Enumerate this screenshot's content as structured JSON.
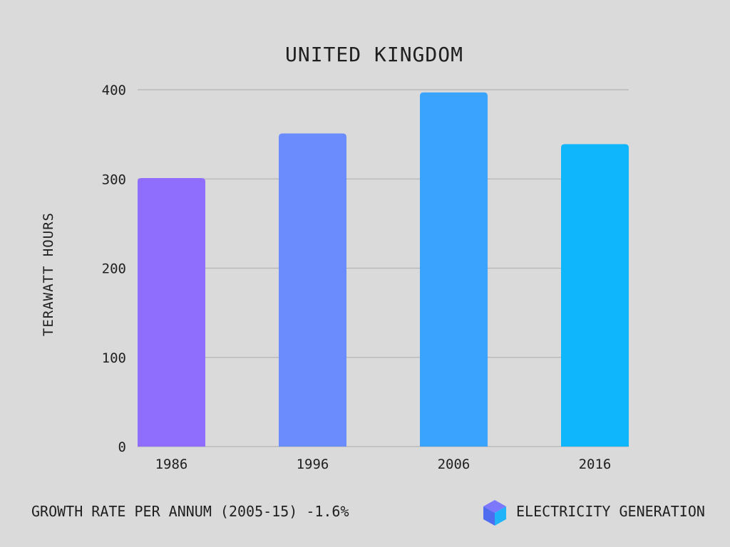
{
  "chart_data": {
    "type": "bar",
    "title": "UNITED KINGDOM",
    "ylabel": "TERAWATT HOURS",
    "xlabel": "",
    "categories": [
      "1986",
      "1996",
      "2006",
      "2016"
    ],
    "values": [
      301,
      351,
      397,
      339
    ],
    "bar_colors": [
      "#8f6dfd",
      "#6b8cfd",
      "#3aa3fd",
      "#10b6fc"
    ],
    "ylim": [
      0,
      400
    ],
    "yticks": [
      0,
      100,
      200,
      300,
      400
    ],
    "grid": true,
    "legend": "none"
  },
  "footer": {
    "growth_text": "GROWTH RATE PER ANNUM (2005-15) -1.6%",
    "category_text": "ELECTRICITY GENERATION",
    "logo_icon": "cube-icon"
  },
  "colors": {
    "background": "#dadada",
    "gridline": "#b4b4b4",
    "text": "#1f1f1f"
  }
}
